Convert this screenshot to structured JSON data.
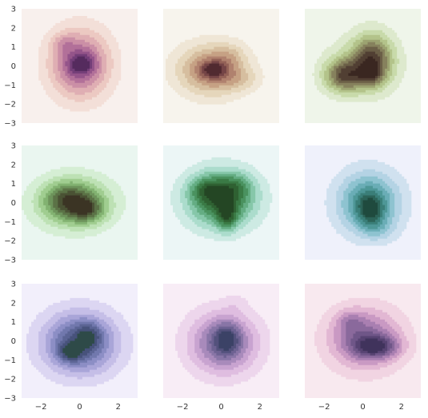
{
  "chart_data": [
    {
      "type": "kde_contour",
      "grid_position": "row-1-col-1",
      "xlim": [
        -3,
        3
      ],
      "ylim": [
        -3,
        3
      ],
      "background": "#f8f0ed",
      "colors": [
        "#f3dfd8",
        "#ecc9c2",
        "#dfaeb3",
        "#cb8fa6",
        "#b27099",
        "#94548a",
        "#733e78",
        "#552b5e"
      ],
      "clusters": [
        {
          "x": 0.0,
          "y": 0.1,
          "sx": 1.05,
          "sy": 1.2,
          "w": 1.0
        },
        {
          "x": -0.9,
          "y": 1.2,
          "sx": 0.4,
          "sy": 0.35,
          "w": 0.25
        },
        {
          "x": 0.1,
          "y": 0.1,
          "sx": 0.45,
          "sy": 0.35,
          "w": 0.45
        }
      ]
    },
    {
      "type": "kde_contour",
      "grid_position": "row-1-col-2",
      "xlim": [
        -3,
        3
      ],
      "ylim": [
        -3,
        3
      ],
      "background": "#f7f4ed",
      "colors": [
        "#efe6d6",
        "#e5d6bb",
        "#d6be9f",
        "#c6a184",
        "#b0816e",
        "#936157",
        "#744446",
        "#512a30"
      ],
      "clusters": [
        {
          "x": -0.5,
          "y": -0.2,
          "sx": 1.2,
          "sy": 0.9,
          "w": 1.0
        },
        {
          "x": -0.4,
          "y": -0.2,
          "sx": 0.45,
          "sy": 0.3,
          "w": 0.6
        },
        {
          "x": 0.5,
          "y": 0.5,
          "sx": 0.5,
          "sy": 0.5,
          "w": 0.2
        },
        {
          "x": 1.0,
          "y": -0.7,
          "sx": 0.7,
          "sy": 0.4,
          "w": 0.25
        }
      ]
    },
    {
      "type": "kde_contour",
      "grid_position": "row-1-col-3",
      "xlim": [
        -3,
        3
      ],
      "ylim": [
        -3,
        3
      ],
      "background": "#eff5ea",
      "colors": [
        "#dde9cd",
        "#c8daaa",
        "#b3c38a",
        "#9ca371",
        "#86815d",
        "#6b5f47",
        "#513f33",
        "#3a2721"
      ],
      "clusters": [
        {
          "x": -1.0,
          "y": -0.5,
          "sx": 0.7,
          "sy": 0.6,
          "w": 0.9
        },
        {
          "x": 0.5,
          "y": 0.4,
          "sx": 0.7,
          "sy": 0.9,
          "w": 0.9
        },
        {
          "x": 0.4,
          "y": -0.5,
          "sx": 0.45,
          "sy": 0.4,
          "w": 0.45
        },
        {
          "x": 0.0,
          "y": 0.0,
          "sx": 1.3,
          "sy": 1.1,
          "w": 0.35
        }
      ]
    },
    {
      "type": "kde_contour",
      "grid_position": "row-2-col-1",
      "xlim": [
        -3,
        3
      ],
      "ylim": [
        -3,
        3
      ],
      "background": "#eaf6f0",
      "colors": [
        "#d5eed4",
        "#bde1b4",
        "#a0cd90",
        "#82b271",
        "#6d935b",
        "#5b7246",
        "#4a5234",
        "#3b3424"
      ],
      "clusters": [
        {
          "x": -0.3,
          "y": 0.0,
          "sx": 1.3,
          "sy": 0.9,
          "w": 1.0
        },
        {
          "x": 0.4,
          "y": -0.4,
          "sx": 0.6,
          "sy": 0.45,
          "w": 0.55
        },
        {
          "x": -0.7,
          "y": 0.2,
          "sx": 0.8,
          "sy": 0.6,
          "w": 0.4
        }
      ]
    },
    {
      "type": "kde_contour",
      "grid_position": "row-2-col-2",
      "xlim": [
        -3,
        3
      ],
      "ylim": [
        -3,
        3
      ],
      "background": "#ecf6f6",
      "colors": [
        "#cdeae3",
        "#abdccc",
        "#86c7a9",
        "#64ad83",
        "#4a925f",
        "#3a7a45",
        "#2f6132",
        "#244624"
      ],
      "clusters": [
        {
          "x": 0.0,
          "y": 0.2,
          "sx": 1.2,
          "sy": 1.0,
          "w": 1.0
        },
        {
          "x": 0.3,
          "y": -0.7,
          "sx": 0.35,
          "sy": 0.55,
          "w": 0.5
        },
        {
          "x": -0.8,
          "y": 0.7,
          "sx": 0.6,
          "sy": 0.45,
          "w": 0.35
        },
        {
          "x": 0.8,
          "y": 0.9,
          "sx": 0.6,
          "sy": 0.45,
          "w": 0.25
        }
      ]
    },
    {
      "type": "kde_contour",
      "grid_position": "row-2-col-3",
      "xlim": [
        -3,
        3
      ],
      "ylim": [
        -3,
        3
      ],
      "background": "#eff1fb",
      "colors": [
        "#d0e1ef",
        "#b4d3e4",
        "#8ec3d0",
        "#6aadb6",
        "#4e9797",
        "#3a7e78",
        "#2c6358",
        "#1f4a3e"
      ],
      "clusters": [
        {
          "x": 0.3,
          "y": 0.0,
          "sx": 1.1,
          "sy": 1.1,
          "w": 0.9
        },
        {
          "x": 0.4,
          "y": -0.4,
          "sx": 0.45,
          "sy": 0.55,
          "w": 0.55
        },
        {
          "x": 0.8,
          "y": -1.4,
          "sx": 0.6,
          "sy": 0.4,
          "w": 0.2
        }
      ]
    },
    {
      "type": "kde_contour",
      "grid_position": "row-3-col-1",
      "xlim": [
        -3,
        3
      ],
      "ylim": [
        -3,
        3
      ],
      "background": "#f2effb",
      "colors": [
        "#dcd6f2",
        "#c5bee7",
        "#a9a5d8",
        "#8c8ec5",
        "#7178ad",
        "#5b6494",
        "#47527b",
        "#2e4a48"
      ],
      "clusters": [
        {
          "x": 0.0,
          "y": -0.1,
          "sx": 1.3,
          "sy": 1.1,
          "w": 1.0
        },
        {
          "x": -0.5,
          "y": -0.6,
          "sx": 0.45,
          "sy": 0.35,
          "w": 0.45
        },
        {
          "x": 0.5,
          "y": 0.3,
          "sx": 0.45,
          "sy": 0.45,
          "w": 0.35
        }
      ]
    },
    {
      "type": "kde_contour",
      "grid_position": "row-3-col-2",
      "xlim": [
        -3,
        3
      ],
      "ylim": [
        -3,
        3
      ],
      "background": "#f8edf6",
      "colors": [
        "#edd6ec",
        "#dfbde0",
        "#c8a3d0",
        "#a88abb",
        "#8875a6",
        "#6d6292",
        "#53517c",
        "#3b4266"
      ],
      "clusters": [
        {
          "x": 0.1,
          "y": -0.1,
          "sx": 1.2,
          "sy": 1.1,
          "w": 1.0
        },
        {
          "x": 0.3,
          "y": 0.1,
          "sx": 0.45,
          "sy": 0.55,
          "w": 0.55
        },
        {
          "x": 0.7,
          "y": 2.0,
          "sx": 0.4,
          "sy": 0.3,
          "w": 0.12
        }
      ]
    },
    {
      "type": "kde_contour",
      "grid_position": "row-3-col-3",
      "xlim": [
        -3,
        3
      ],
      "ylim": [
        -3,
        3
      ],
      "background": "#f8e9ef",
      "colors": [
        "#f1d4e2",
        "#e2b7d3",
        "#c999c3",
        "#a97fb1",
        "#8a699c",
        "#6f5688",
        "#574372",
        "#40335c"
      ],
      "clusters": [
        {
          "x": 0.1,
          "y": 0.1,
          "sx": 1.3,
          "sy": 1.1,
          "w": 0.9
        },
        {
          "x": 0.7,
          "y": -0.3,
          "sx": 0.8,
          "sy": 0.4,
          "w": 0.8
        },
        {
          "x": -0.7,
          "y": 1.0,
          "sx": 0.5,
          "sy": 0.45,
          "w": 0.3
        }
      ]
    }
  ],
  "axes": {
    "yticks": [
      "3",
      "2",
      "1",
      "0",
      "−1",
      "−2",
      "−3"
    ],
    "xticks": [
      "−2",
      "0",
      "2"
    ]
  }
}
